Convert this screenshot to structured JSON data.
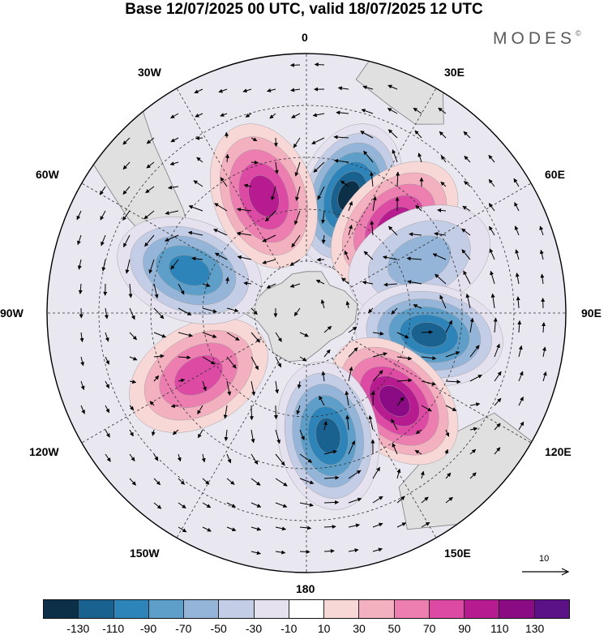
{
  "header": {
    "title": "Base 12/07/2025 00 UTC, valid 18/07/2025 12 UTC",
    "brand": "MODES",
    "brand_mark": "©"
  },
  "map": {
    "projection": "south-polar-stereographic",
    "lon_labels": {
      "deg0": "0",
      "deg30e": "30E",
      "deg60e": "60E",
      "deg90e": "90E",
      "deg120e": "120E",
      "deg150e": "150E",
      "deg180": "180",
      "deg150w": "150W",
      "deg120w": "120W",
      "deg90w": "90W",
      "deg60w": "60W",
      "deg30w": "30W"
    },
    "anomaly_centres": [
      {
        "lon": 20,
        "sign": "negative",
        "peak": -130
      },
      {
        "lon": 45,
        "sign": "positive",
        "peak": 110
      },
      {
        "lon": 65,
        "sign": "negative",
        "peak": -50
      },
      {
        "lon": 100,
        "sign": "negative",
        "peak": -110
      },
      {
        "lon": 135,
        "sign": "positive",
        "peak": 130
      },
      {
        "lon": 170,
        "sign": "negative",
        "peak": -110
      },
      {
        "lon": 240,
        "sign": "positive",
        "peak": 90
      },
      {
        "lon": 290,
        "sign": "negative",
        "peak": -90
      },
      {
        "lon": 340,
        "sign": "positive",
        "peak": 110
      }
    ],
    "reference_vector": "10"
  },
  "colorbar": {
    "colors": [
      "#0d3049",
      "#19618e",
      "#2c84b9",
      "#5d9fc8",
      "#94b5d8",
      "#c3cde5",
      "#e5e1ef",
      "#ffffff",
      "#f8d7d7",
      "#f3b0be",
      "#ec7fb0",
      "#dd4aa3",
      "#b61b8f",
      "#8a0b83",
      "#5a1286"
    ],
    "tick_labels": [
      "-130",
      "-110",
      "-90",
      "-70",
      "-50",
      "-30",
      "-10",
      "10",
      "30",
      "50",
      "70",
      "90",
      "110",
      "130"
    ]
  }
}
